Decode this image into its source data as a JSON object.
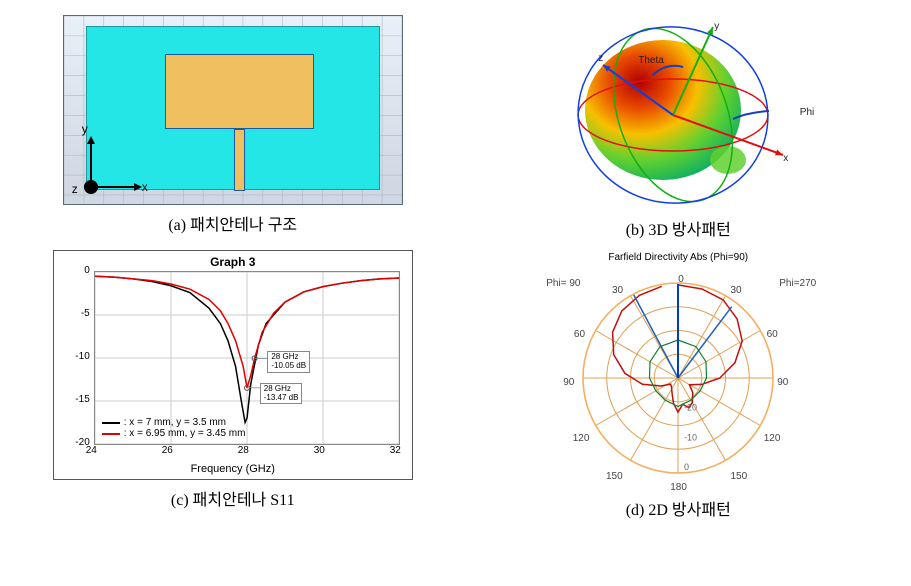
{
  "captions": {
    "a": "(a) 패치안테나 구조",
    "b": "(b) 3D 방사패턴",
    "c": "(c) 패치안테나 S11",
    "d": "(d) 2D 방사패턴"
  },
  "panel_a": {
    "background_top": "#e8f0f8",
    "background_bottom": "#d0d8e4",
    "grid_color": "#b0b8c4",
    "substrate_color": "#25e6e6",
    "substrate_border": "#1a9aa0",
    "patch_color": "#f0c060",
    "patch_border": "#1a5aa0",
    "patch": {
      "left_pct": 30,
      "top_pct": 20,
      "width_pct": 44,
      "height_pct": 40
    },
    "feed": {
      "left_pct": 50.5,
      "top_pct": 60,
      "width_pct": 3,
      "height_pct": 33
    },
    "axis_labels": {
      "x": "x",
      "y": "y",
      "z": "z"
    },
    "axis_color": "#000000",
    "z_dot_color": "#000000"
  },
  "panel_b": {
    "axis_labels": {
      "x": "x",
      "y": "y",
      "z": "z",
      "phi": "Phi",
      "theta": "Theta"
    },
    "axis_colors": {
      "x": "#e01010",
      "y": "#10b010",
      "z": "#1040e0"
    },
    "ring_colors": {
      "xy": "#e01010",
      "xz": "#10b010",
      "yz": "#1040e0"
    },
    "lobe_gradient": [
      "#b00000",
      "#e84800",
      "#f8c000",
      "#60d030",
      "#10b060"
    ],
    "background": "#ffffff"
  },
  "panel_c": {
    "type": "line",
    "title": "Graph 3",
    "xlabel": "Frequency (GHz)",
    "xlim": [
      24,
      32
    ],
    "xticks": [
      24,
      26,
      28,
      30,
      32
    ],
    "ylim": [
      -20,
      0
    ],
    "yticks": [
      0,
      -5,
      -10,
      -15,
      -20
    ],
    "grid_color": "#cccccc",
    "axis_color": "#555555",
    "series": [
      {
        "name": "x = 7 mm, y = 3.5 mm",
        "color": "#000000",
        "line_width": 1.5,
        "data": [
          [
            24.0,
            -0.5
          ],
          [
            24.5,
            -0.6
          ],
          [
            25.0,
            -0.8
          ],
          [
            25.5,
            -1.1
          ],
          [
            26.0,
            -1.6
          ],
          [
            26.5,
            -2.4
          ],
          [
            27.0,
            -4.2
          ],
          [
            27.3,
            -6.0
          ],
          [
            27.5,
            -8.0
          ],
          [
            27.7,
            -11.0
          ],
          [
            27.85,
            -15.0
          ],
          [
            27.95,
            -17.5
          ],
          [
            28.0,
            -17.0
          ],
          [
            28.1,
            -13.0
          ],
          [
            28.3,
            -8.5
          ],
          [
            28.5,
            -6.0
          ],
          [
            29.0,
            -3.5
          ],
          [
            29.5,
            -2.3
          ],
          [
            30.0,
            -1.7
          ],
          [
            30.5,
            -1.3
          ],
          [
            31.0,
            -1.0
          ],
          [
            31.5,
            -0.8
          ],
          [
            32.0,
            -0.7
          ]
        ]
      },
      {
        "name": "x = 6.95 mm, y = 3.45 mm",
        "color": "#e00000",
        "line_width": 1.5,
        "data": [
          [
            24.0,
            -0.5
          ],
          [
            24.5,
            -0.6
          ],
          [
            25.0,
            -0.8
          ],
          [
            25.5,
            -1.0
          ],
          [
            26.0,
            -1.4
          ],
          [
            26.5,
            -2.0
          ],
          [
            27.0,
            -3.2
          ],
          [
            27.3,
            -4.5
          ],
          [
            27.5,
            -6.0
          ],
          [
            27.7,
            -8.0
          ],
          [
            27.9,
            -11.0
          ],
          [
            28.0,
            -13.47
          ],
          [
            28.1,
            -12.0
          ],
          [
            28.2,
            -10.05
          ],
          [
            28.4,
            -7.0
          ],
          [
            28.7,
            -4.8
          ],
          [
            29.0,
            -3.5
          ],
          [
            29.5,
            -2.3
          ],
          [
            30.0,
            -1.7
          ],
          [
            30.5,
            -1.3
          ],
          [
            31.0,
            -1.0
          ],
          [
            31.5,
            -0.8
          ],
          [
            32.0,
            -0.7
          ]
        ]
      }
    ],
    "markers": [
      {
        "freq_text": "28 GHz",
        "val_text": "-10.05 dB",
        "x": 28.2,
        "y": -10.05
      },
      {
        "freq_text": "28 GHz",
        "val_text": "-13.47 dB",
        "x": 28.0,
        "y": -13.47
      }
    ],
    "legend_prefix": ": "
  },
  "panel_d": {
    "type": "polar",
    "title": "Farfield Directivity Abs (Phi=90)",
    "outer_radius": 95,
    "ring_color": "#f4b060",
    "ring_line_color": "#e0a050",
    "spoke_color": "#e0a050",
    "angle_ticks": [
      0,
      30,
      60,
      90,
      120,
      150,
      180
    ],
    "radial_ticks_text": [
      "-20",
      "-10",
      "0"
    ],
    "corner_labels": {
      "left": "Phi= 90",
      "right": "Phi=270"
    },
    "traces": [
      {
        "color": "#c01010",
        "line_width": 1.5,
        "points": [
          [
            0,
            0.98
          ],
          [
            15,
            0.97
          ],
          [
            30,
            0.95
          ],
          [
            45,
            0.88
          ],
          [
            60,
            0.78
          ],
          [
            75,
            0.62
          ],
          [
            90,
            0.44
          ],
          [
            105,
            0.26
          ],
          [
            120,
            0.14
          ],
          [
            135,
            0.22
          ],
          [
            150,
            0.3
          ],
          [
            160,
            0.33
          ],
          [
            170,
            0.28
          ],
          [
            180,
            0.36
          ],
          [
            190,
            0.27
          ],
          [
            200,
            0.18
          ],
          [
            215,
            0.12
          ],
          [
            230,
            0.1
          ],
          [
            245,
            0.2
          ],
          [
            260,
            0.38
          ],
          [
            275,
            0.56
          ],
          [
            290,
            0.72
          ],
          [
            305,
            0.84
          ],
          [
            320,
            0.92
          ],
          [
            335,
            0.96
          ],
          [
            350,
            0.98
          ]
        ]
      },
      {
        "color": "#2060c0",
        "line_width": 1.5,
        "points": [
          [
            332,
            0.0
          ],
          [
            332,
            0.99
          ]
        ]
      },
      {
        "color": "#2060c0",
        "line_width": 1.5,
        "points": [
          [
            37,
            0.0
          ],
          [
            37,
            0.94
          ]
        ]
      },
      {
        "color": "#108030",
        "line_width": 1.2,
        "points": [
          [
            0,
            0.4
          ],
          [
            30,
            0.38
          ],
          [
            60,
            0.34
          ],
          [
            90,
            0.3
          ],
          [
            120,
            0.27
          ],
          [
            150,
            0.27
          ],
          [
            180,
            0.3
          ],
          [
            210,
            0.27
          ],
          [
            240,
            0.27
          ],
          [
            270,
            0.3
          ],
          [
            300,
            0.34
          ],
          [
            330,
            0.38
          ],
          [
            360,
            0.4
          ]
        ]
      },
      {
        "color": "#0040c0",
        "line_width": 2,
        "points": [
          [
            0,
            0.0
          ],
          [
            0,
            0.99
          ]
        ]
      }
    ]
  }
}
